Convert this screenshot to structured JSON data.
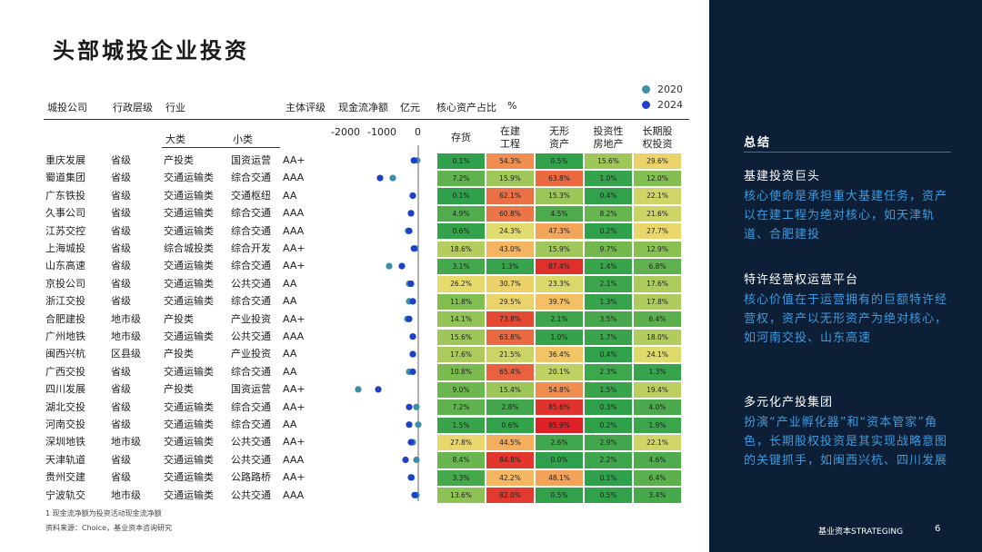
{
  "title": "头部城投企业投资",
  "legend": [
    {
      "label": "2020",
      "color": "#3b8fa6"
    },
    {
      "label": "2024",
      "color": "#1d3fc9"
    }
  ],
  "headers": {
    "company": "城投公司",
    "level": "行政层级",
    "industry": "行业",
    "major": "大类",
    "minor": "小类",
    "rating": "主体评级",
    "cashflow": "现金流净额",
    "cashflow_unit": "亿元",
    "asset_share": "核心资产占比",
    "asset_unit": "%"
  },
  "axis_ticks": [
    "-2000",
    "-1000",
    "0"
  ],
  "asset_columns": [
    "存货",
    "在建\n工程",
    "无形\n资产",
    "投资性\n房地产",
    "长期股\n权投资"
  ],
  "chart_data": {
    "type": "table",
    "title": "头部城投企业投资",
    "xlabel": "现金流净额 亿元",
    "xlim": [
      -2000,
      0
    ],
    "series_names": [
      "2020",
      "2024"
    ],
    "rows": [
      {
        "company": "重庆发展",
        "level": "省级",
        "major": "产投类",
        "minor": "国资运营",
        "rating": "AA+",
        "cf2020": -30,
        "cf2024": -120,
        "assets": [
          "0.1%",
          "54.3%",
          "0.5%",
          "15.6%",
          "29.6%"
        ]
      },
      {
        "company": "蜀道集团",
        "level": "省级",
        "major": "交通运输类",
        "minor": "综合交通",
        "rating": "AAA",
        "cf2020": -700,
        "cf2024": -1050,
        "assets": [
          "7.2%",
          "15.9%",
          "63.8%",
          "1.0%",
          "12.0%"
        ]
      },
      {
        "company": "广东铁投",
        "level": "省级",
        "major": "交通运输类",
        "minor": "交通枢纽",
        "rating": "AA",
        "cf2020": -150,
        "cf2024": -150,
        "assets": [
          "0.1%",
          "62.1%",
          "15.3%",
          "0.4%",
          "22.1%"
        ]
      },
      {
        "company": "久事公司",
        "level": "省级",
        "major": "交通运输类",
        "minor": "综合交通",
        "rating": "AAA",
        "cf2020": -200,
        "cf2024": -200,
        "assets": [
          "4.9%",
          "60.8%",
          "4.5%",
          "8.2%",
          "21.6%"
        ]
      },
      {
        "company": "江苏交控",
        "level": "省级",
        "major": "交通运输类",
        "minor": "综合交通",
        "rating": "AAA",
        "cf2020": -280,
        "cf2024": -250,
        "assets": [
          "0.6%",
          "24.3%",
          "47.3%",
          "0.2%",
          "27.7%"
        ]
      },
      {
        "company": "上海城投",
        "level": "省级",
        "major": "综合城投类",
        "minor": "综合开发",
        "rating": "AA+",
        "cf2020": -80,
        "cf2024": -120,
        "assets": [
          "18.6%",
          "43.0%",
          "15.9%",
          "9.7%",
          "12.9%"
        ]
      },
      {
        "company": "山东高速",
        "level": "省级",
        "major": "交通运输类",
        "minor": "综合交通",
        "rating": "AA+",
        "cf2020": -800,
        "cf2024": -450,
        "assets": [
          "3.1%",
          "1.3%",
          "87.4%",
          "1.4%",
          "6.8%"
        ]
      },
      {
        "company": "京投公司",
        "level": "省级",
        "major": "交通运输类",
        "minor": "公共交通",
        "rating": "AA",
        "cf2020": -250,
        "cf2024": -200,
        "assets": [
          "26.2%",
          "30.7%",
          "23.3%",
          "2.1%",
          "17.6%"
        ]
      },
      {
        "company": "浙江交投",
        "level": "省级",
        "major": "交通运输类",
        "minor": "综合交通",
        "rating": "AA",
        "cf2020": -250,
        "cf2024": -150,
        "assets": [
          "11.8%",
          "29.5%",
          "39.7%",
          "1.3%",
          "17.8%"
        ]
      },
      {
        "company": "合肥建投",
        "level": "地市级",
        "major": "产投类",
        "minor": "产业投资",
        "rating": "AA+",
        "cf2020": -300,
        "cf2024": -250,
        "assets": [
          "14.1%",
          "73.8%",
          "2.1%",
          "3.5%",
          "6.4%"
        ]
      },
      {
        "company": "广州地铁",
        "level": "地市级",
        "major": "交通运输类",
        "minor": "公共交通",
        "rating": "AAA",
        "cf2020": -150,
        "cf2024": -150,
        "assets": [
          "15.6%",
          "63.8%",
          "1.0%",
          "1.7%",
          "18.0%"
        ]
      },
      {
        "company": "闽西兴杭",
        "level": "区县级",
        "major": "产投类",
        "minor": "产业投资",
        "rating": "AA",
        "cf2020": -150,
        "cf2024": -150,
        "assets": [
          "17.6%",
          "21.5%",
          "36.4%",
          "0.4%",
          "24.1%"
        ]
      },
      {
        "company": "广西交投",
        "level": "省级",
        "major": "交通运输类",
        "minor": "综合交通",
        "rating": "AA",
        "cf2020": -250,
        "cf2024": -150,
        "assets": [
          "10.8%",
          "65.4%",
          "20.1%",
          "2.3%",
          "1.3%"
        ]
      },
      {
        "company": "四川发展",
        "level": "省级",
        "major": "产投类",
        "minor": "国资运营",
        "rating": "AA+",
        "cf2020": -1650,
        "cf2024": -1100,
        "assets": [
          "9.0%",
          "15.4%",
          "54.8%",
          "1.5%",
          "19.4%"
        ]
      },
      {
        "company": "湖北交投",
        "level": "省级",
        "major": "交通运输类",
        "minor": "综合交通",
        "rating": "AA+",
        "cf2020": -50,
        "cf2024": -250,
        "assets": [
          "7.2%",
          "2.8%",
          "85.6%",
          "0.3%",
          "4.0%"
        ]
      },
      {
        "company": "河南交投",
        "level": "省级",
        "major": "交通运输类",
        "minor": "综合交通",
        "rating": "AA",
        "cf2020": 0,
        "cf2024": -250,
        "assets": [
          "1.5%",
          "0.6%",
          "95.9%",
          "0.2%",
          "1.9%"
        ]
      },
      {
        "company": "深圳地铁",
        "level": "地市级",
        "major": "交通运输类",
        "minor": "公共交通",
        "rating": "AA+",
        "cf2020": -150,
        "cf2024": -200,
        "assets": [
          "27.8%",
          "44.5%",
          "2.6%",
          "2.9%",
          "22.1%"
        ]
      },
      {
        "company": "天津轨道",
        "level": "省级",
        "major": "交通运输类",
        "minor": "公共交通",
        "rating": "AAA",
        "cf2020": -50,
        "cf2024": -350,
        "assets": [
          "8.4%",
          "84.8%",
          "0.0%",
          "2.2%",
          "4.6%"
        ]
      },
      {
        "company": "贵州交建",
        "level": "省级",
        "major": "交通运输类",
        "minor": "公路路桥",
        "rating": "AA+",
        "cf2020": -180,
        "cf2024": -200,
        "assets": [
          "3.3%",
          "42.2%",
          "48.1%",
          "0.1%",
          "6.4%"
        ]
      },
      {
        "company": "宁波轨交",
        "level": "地市级",
        "major": "交通运输类",
        "minor": "公共交通",
        "rating": "AAA",
        "cf2020": -50,
        "cf2024": -100,
        "assets": [
          "13.6%",
          "82.0%",
          "0.5%",
          "0.5%",
          "3.4%"
        ]
      }
    ]
  },
  "footnotes": {
    "note1": "1 现金流净额为投资活动现金流净额",
    "source": "资料来源：Choice，基业资本咨询研究"
  },
  "right_panel": {
    "title": "总结",
    "sections": [
      {
        "head": "基建投资巨头",
        "body": "核心使命是承担重大基建任务，资产以在建工程为绝对核心，如天津轨道、合肥建投"
      },
      {
        "head": "特许经营权运营平台",
        "body": "核心价值在于运营拥有的巨额特许经营权，资产以无形资产为绝对核心，如河南交投、山东高速"
      },
      {
        "head": "多元化产投集团",
        "body": "扮演“产业孵化器”和“资本管家”角色，长期股权投资是其实现战略意图的关键抓手，如闽西兴杭、四川发展"
      }
    ],
    "brand": "基业资本STRATEGING",
    "page": "6"
  }
}
